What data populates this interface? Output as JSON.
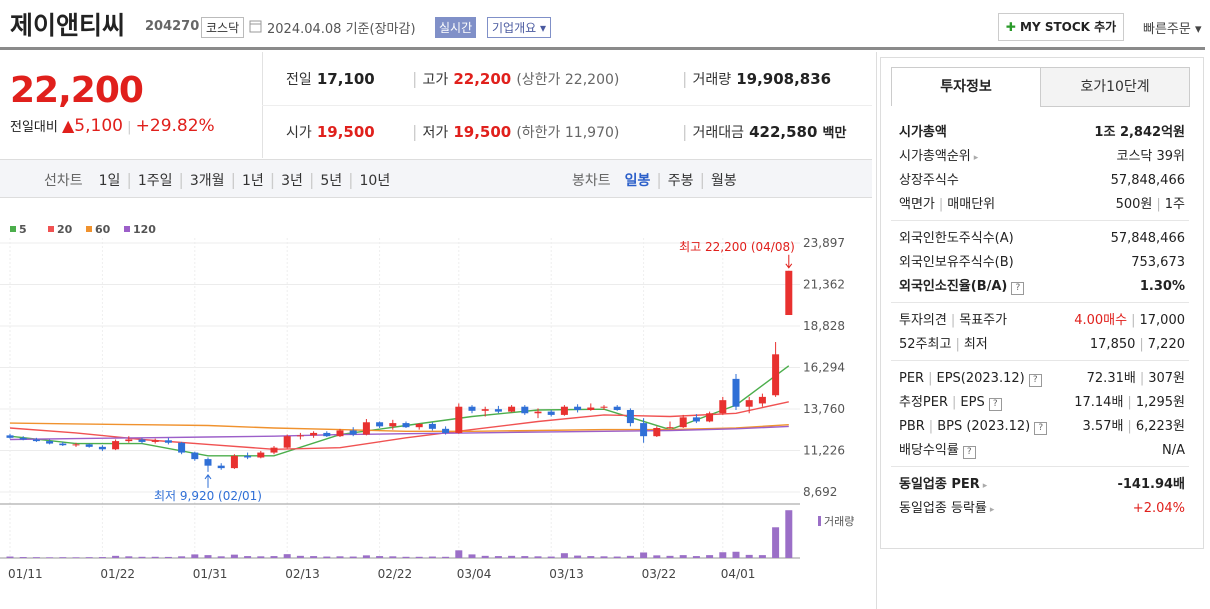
{
  "header": {
    "name": "제이앤티씨",
    "code": "204270",
    "market": "코스닥",
    "date": "2024.04.08",
    "basis": "기준(장마감)",
    "realtime": "실시간",
    "overview": "기업개요",
    "mystock": "MY STOCK 추가",
    "order": "빠른주문"
  },
  "quote": {
    "price": "22,200",
    "change_label": "전일대비",
    "change": "5,100",
    "change_rate": "+29.82%",
    "prev_label": "전일",
    "prev": "17,100",
    "high_label": "고가",
    "high": "22,200",
    "upper_label": "상한가",
    "upper": "22,200",
    "volume_label": "거래량",
    "volume": "19,908,836",
    "open_label": "시가",
    "open": "19,500",
    "low_label": "저가",
    "low": "19,500",
    "lower_label": "하한가",
    "lower": "11,970",
    "amount_label": "거래대금",
    "amount": "422,580",
    "amount_unit": "백만"
  },
  "chart_tabs": {
    "line_label": "선차트",
    "line_periods": [
      "1일",
      "1주일",
      "3개월",
      "1년",
      "3년",
      "5년",
      "10년"
    ],
    "candle_label": "봉차트",
    "candle_periods": [
      "일봉",
      "주봉",
      "월봉"
    ],
    "active_candle": 0
  },
  "info": {
    "tabs": [
      "투자정보",
      "호가10단계"
    ],
    "sections": [
      [
        {
          "label": "시가총액",
          "value": "1조 2,842억원",
          "bold": true
        },
        {
          "label": "시가총액순위",
          "value": "코스닥 39위",
          "link": true
        },
        {
          "label": "상장주식수",
          "value": "57,848,466"
        },
        {
          "label": "액면가",
          "label2": "매매단위",
          "value": "500원",
          "value2": "1주"
        }
      ],
      [
        {
          "label": "외국인한도주식수(A)",
          "value": "57,848,466"
        },
        {
          "label": "외국인보유주식수(B)",
          "value": "753,673"
        },
        {
          "label": "외국인소진율(B/A)",
          "value": "1.30%",
          "bold": true,
          "help": true
        }
      ],
      [
        {
          "label": "투자의견",
          "label2": "목표주가",
          "value": "4.00매수",
          "value2": "17,000",
          "red": true
        },
        {
          "label": "52주최고",
          "label2": "최저",
          "value": "17,850",
          "value2": "7,220"
        }
      ],
      [
        {
          "label": "PER",
          "label2": "EPS(2023.12)",
          "value": "72.31배",
          "value2": "307원",
          "help": true
        },
        {
          "label": "추정PER",
          "label2": "EPS",
          "value": "17.14배",
          "value2": "1,295원",
          "help": true
        },
        {
          "label": "PBR",
          "label2": "BPS (2023.12)",
          "value": "3.57배",
          "value2": "6,223원",
          "help": true
        },
        {
          "label": "배당수익률",
          "value": "N/A",
          "help": true
        }
      ],
      [
        {
          "label": "동일업종 PER",
          "value": "-141.94배",
          "bold": true,
          "link": true
        },
        {
          "label": "동일업종 등락률",
          "value": "+2.04%",
          "red": true,
          "link": true
        }
      ]
    ]
  },
  "chart_data": {
    "type": "candlestick",
    "categories": [
      "01/11",
      null,
      null,
      null,
      null,
      null,
      null,
      "01/22",
      null,
      null,
      null,
      null,
      null,
      null,
      "01/31",
      null,
      null,
      null,
      null,
      null,
      null,
      "02/13",
      null,
      null,
      null,
      null,
      null,
      null,
      "02/22",
      null,
      null,
      null,
      null,
      null,
      "03/04",
      null,
      null,
      null,
      null,
      null,
      null,
      "03/13",
      null,
      null,
      null,
      null,
      null,
      null,
      "03/22",
      null,
      null,
      null,
      null,
      null,
      "04/01",
      null,
      null,
      null,
      null,
      null
    ],
    "open": [
      12150,
      12000,
      11900,
      11800,
      11650,
      11550,
      11600,
      11450,
      11300,
      11800,
      11900,
      11750,
      11850,
      11700,
      11100,
      10700,
      10300,
      10150,
      10900,
      10800,
      11100,
      11400,
      12100,
      12150,
      12300,
      12100,
      12450,
      12200,
      12950,
      12700,
      12900,
      12650,
      12850,
      12550,
      12300,
      13900,
      13650,
      13750,
      13600,
      13900,
      13500,
      13600,
      13400,
      13900,
      13700,
      13850,
      13900,
      13700,
      12900,
      12100,
      12600,
      12650,
      13250,
      13000,
      13500,
      15600,
      13900,
      14100,
      14600,
      19500
    ],
    "high": [
      12250,
      12100,
      12000,
      11900,
      11750,
      11700,
      11650,
      11550,
      11900,
      12100,
      12000,
      11950,
      12000,
      11750,
      11150,
      10800,
      10450,
      11000,
      11100,
      11200,
      11500,
      12200,
      12300,
      12400,
      12400,
      12550,
      12650,
      13150,
      13000,
      13100,
      13000,
      12900,
      12950,
      12700,
      14100,
      14000,
      13900,
      13950,
      14000,
      14000,
      13800,
      13700,
      14000,
      14050,
      14100,
      14000,
      14000,
      13800,
      13200,
      12700,
      13000,
      13400,
      13450,
      13600,
      14500,
      15900,
      14500,
      14700,
      17850,
      22200
    ],
    "low": [
      11950,
      11850,
      11750,
      11600,
      11500,
      11450,
      11400,
      11200,
      11250,
      11700,
      11650,
      11650,
      11600,
      11000,
      10600,
      9920,
      10050,
      10100,
      10700,
      10750,
      11000,
      11350,
      11900,
      12000,
      12050,
      12050,
      12100,
      12150,
      12600,
      12500,
      12600,
      12500,
      12450,
      12200,
      12250,
      13500,
      13300,
      13500,
      13550,
      13400,
      13200,
      13300,
      13350,
      13550,
      13650,
      13700,
      13650,
      12700,
      11700,
      12050,
      12550,
      12600,
      12900,
      12950,
      13400,
      13700,
      13500,
      13900,
      14500,
      19500
    ],
    "close": [
      12000,
      11900,
      11800,
      11650,
      11550,
      11600,
      11450,
      11300,
      11800,
      11900,
      11750,
      11850,
      11700,
      11100,
      10700,
      10300,
      10150,
      10900,
      10800,
      11100,
      11400,
      12100,
      12150,
      12300,
      12100,
      12450,
      12200,
      12950,
      12700,
      12900,
      12650,
      12850,
      12550,
      12300,
      13900,
      13650,
      13750,
      13600,
      13900,
      13500,
      13600,
      13400,
      13900,
      13700,
      13850,
      13900,
      13700,
      12900,
      12100,
      12600,
      12650,
      13250,
      13000,
      13500,
      14300,
      13900,
      14300,
      14500,
      17100,
      22200
    ],
    "volume": [
      600000,
      400000,
      350000,
      300000,
      350000,
      300000,
      350000,
      400000,
      900000,
      700000,
      500000,
      500000,
      450000,
      700000,
      1500000,
      1200000,
      700000,
      1400000,
      800000,
      700000,
      800000,
      1600000,
      900000,
      800000,
      600000,
      700000,
      600000,
      1100000,
      800000,
      700000,
      500000,
      500000,
      600000,
      500000,
      3200000,
      1500000,
      900000,
      800000,
      900000,
      800000,
      700000,
      600000,
      2000000,
      1000000,
      800000,
      700000,
      600000,
      900000,
      2300000,
      1100000,
      900000,
      1200000,
      800000,
      1200000,
      2400000,
      2600000,
      1300000,
      1200000,
      12800000,
      19908836
    ],
    "ylim": [
      8692,
      23897
    ],
    "yticks": [
      {
        "value": 8692,
        "label": "8,692"
      },
      {
        "value": 11226,
        "label": "11,226"
      },
      {
        "value": 13760,
        "label": "13,760"
      },
      {
        "value": 16294,
        "label": "16,294"
      },
      {
        "value": 18828,
        "label": "18,828"
      },
      {
        "value": 21362,
        "label": "21,362"
      },
      {
        "value": 23897,
        "label": "23,897"
      }
    ],
    "y2lim": [
      0,
      20000000
    ],
    "volume_label": "거래량",
    "up_color": "#e8312f",
    "down_color": "#2f6fd6",
    "volume_color": "#9b6fc7",
    "grid": true,
    "annotations": {
      "high": "최고 22,200 (04/08)",
      "low": "최저 9,920 (02/01)"
    },
    "moving_averages": [
      {
        "name": "5",
        "color": "#4cae4c",
        "x": [
          0,
          5,
          10,
          15,
          20,
          25,
          30,
          35,
          40,
          45,
          50,
          55,
          59
        ],
        "values": [
          12100,
          11650,
          11650,
          10900,
          10900,
          12200,
          12750,
          13300,
          13700,
          13750,
          12500,
          14000,
          16400
        ]
      },
      {
        "name": "20",
        "color": "#f05252",
        "x": [
          0,
          5,
          10,
          15,
          20,
          25,
          30,
          35,
          40,
          45,
          50,
          55,
          59
        ],
        "values": [
          12600,
          12300,
          11900,
          11600,
          11300,
          11400,
          12000,
          12500,
          13000,
          13400,
          13300,
          13500,
          14200
        ]
      },
      {
        "name": "60",
        "color": "#f0922e",
        "x": [
          0,
          5,
          10,
          15,
          20,
          25,
          30,
          35,
          40,
          45,
          50,
          55,
          59
        ],
        "values": [
          12900,
          12850,
          12800,
          12750,
          12600,
          12500,
          12400,
          12400,
          12450,
          12500,
          12500,
          12600,
          12800
        ]
      },
      {
        "name": "120",
        "color": "#9c5fc9",
        "x": [
          0,
          5,
          10,
          15,
          20,
          25,
          30,
          35,
          40,
          45,
          50,
          55,
          59
        ],
        "values": [
          11900,
          11950,
          12000,
          12050,
          12100,
          12200,
          12250,
          12300,
          12350,
          12400,
          12450,
          12550,
          12700
        ]
      }
    ]
  }
}
